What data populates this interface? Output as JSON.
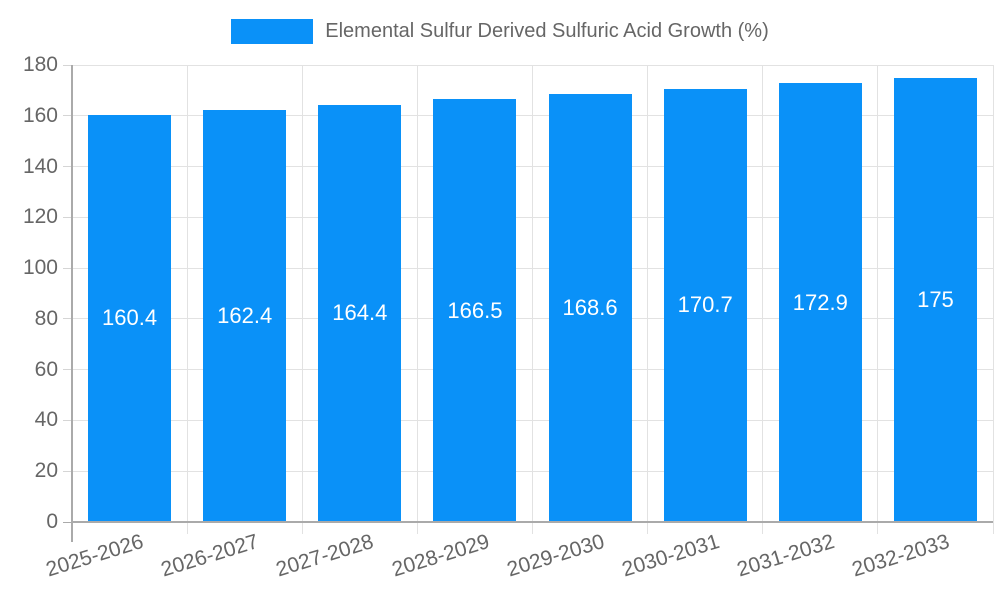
{
  "legend": {
    "label": "Elemental Sulfur Derived Sulfuric Acid Growth (%)",
    "position": "top"
  },
  "chart_data": {
    "type": "bar",
    "title": "Elemental Sulfur Derived Sulfuric Acid Growth (%)",
    "categories": [
      "2025-2026",
      "2026-2027",
      "2027-2028",
      "2028-2029",
      "2029-2030",
      "2030-2031",
      "2031-2032",
      "2032-2033"
    ],
    "values": [
      160.4,
      162.4,
      164.4,
      166.5,
      168.6,
      170.7,
      172.9,
      175
    ],
    "bar_labels": [
      "160.4",
      "162.4",
      "164.4",
      "166.5",
      "168.6",
      "170.7",
      "172.9",
      "175"
    ],
    "xlabel": "",
    "ylabel": "",
    "ylim": [
      0,
      180
    ],
    "yticks": [
      0,
      20,
      40,
      60,
      80,
      100,
      120,
      140,
      160,
      180
    ],
    "grid": true,
    "legend_position": "top",
    "x_label_rotation_deg": -17,
    "colors": {
      "bar": "#0a91f8",
      "bar_value_text": "#ffffff",
      "grid": "#e2e2e2",
      "axis": "#aaaaaa",
      "tick": "#d5d5d5",
      "tick_text": "#666666",
      "legend_text": "#666666",
      "background": "#ffffff"
    }
  }
}
